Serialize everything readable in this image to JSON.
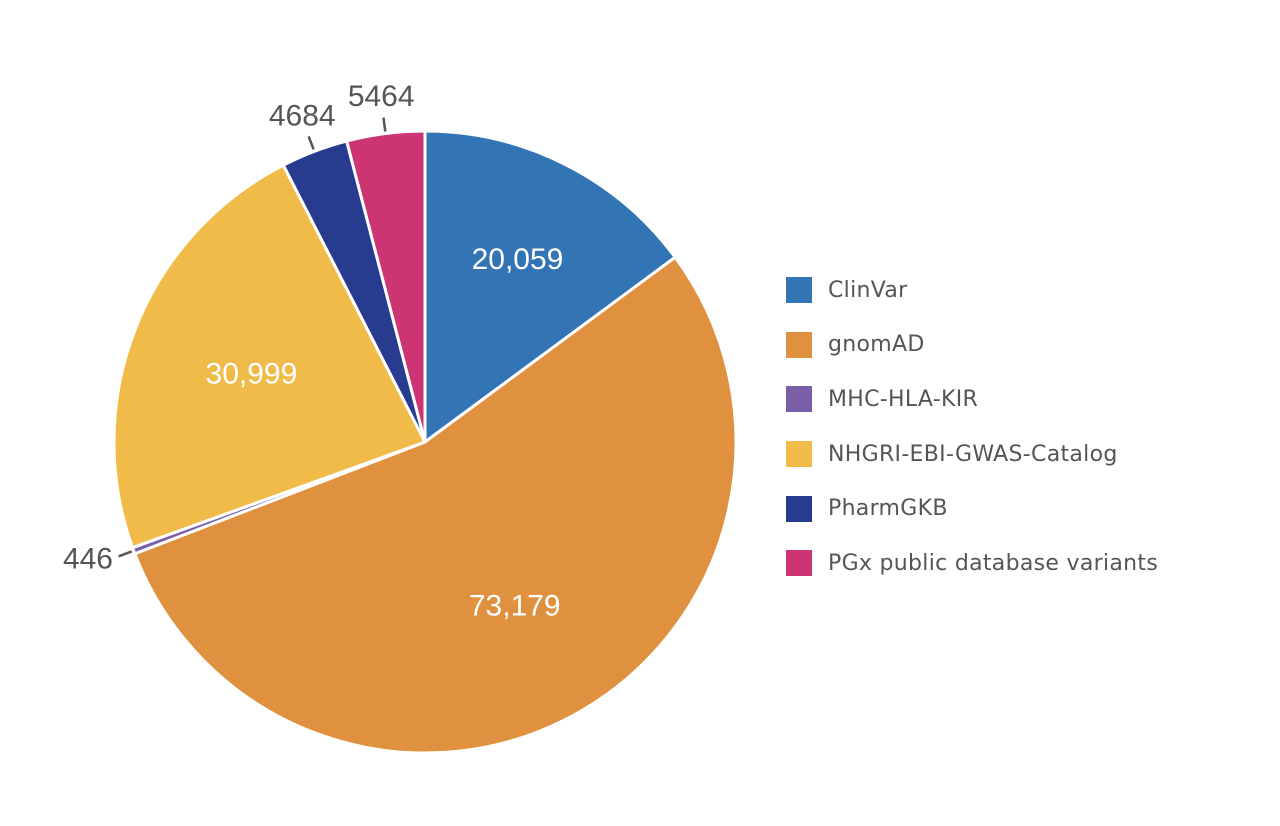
{
  "chart_data": {
    "type": "pie",
    "categories": [
      "ClinVar",
      "gnomAD",
      "MHC-HLA-KIR",
      "NHGRI-EBI-GWAS-Catalog",
      "PharmGKB",
      "PGx public database variants"
    ],
    "values": [
      20059,
      73179,
      446,
      30999,
      4684,
      5464
    ],
    "data_labels": [
      "20,059",
      "73,179",
      "446",
      "30,999",
      "4684",
      "5464"
    ],
    "label_placement": [
      "inside",
      "inside",
      "outside",
      "inside",
      "outside",
      "outside"
    ],
    "colors": [
      "#3274b4",
      "#e0913f",
      "#7a5fa8",
      "#f1bb4a",
      "#283c8f",
      "#cc3474"
    ],
    "start_angle": "top, clockwise",
    "legend": "right"
  }
}
